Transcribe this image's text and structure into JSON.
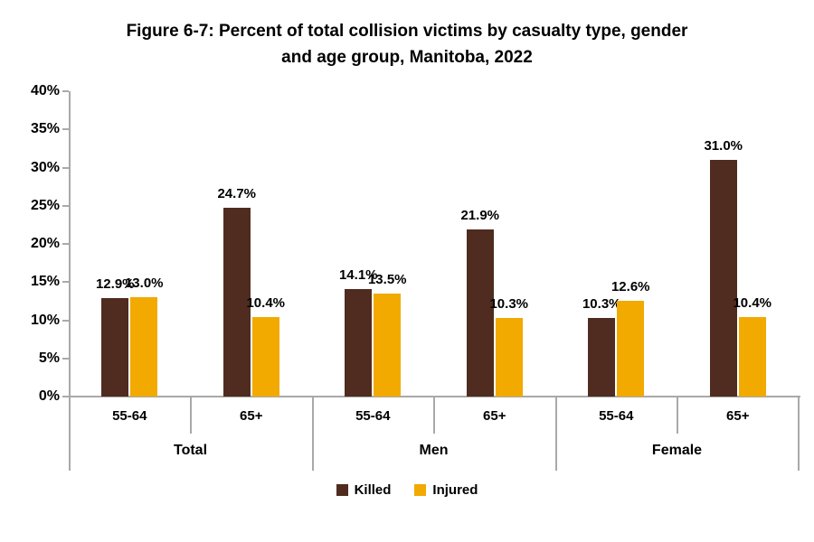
{
  "title_lines": [
    "Figure 6-7: Percent of total collision victims by casualty type, gender",
    "and age group, Manitoba, 2022"
  ],
  "colors": {
    "killed": "#4F2C1F",
    "injured": "#F2A900",
    "axis": "#A9A9A9",
    "text": "#000000"
  },
  "legend": [
    {
      "label": "Killed",
      "color_key": "killed"
    },
    {
      "label": "Injured",
      "color_key": "injured"
    }
  ],
  "chart_data": {
    "type": "bar",
    "title": "Figure 6-7: Percent of total collision victims by casualty type, gender and age group, Manitoba, 2022",
    "xlabel": "",
    "ylabel": "",
    "ylim": [
      0,
      40
    ],
    "y_tick_step": 5,
    "y_tick_labels": [
      "0%",
      "5%",
      "10%",
      "15%",
      "20%",
      "25%",
      "30%",
      "35%",
      "40%"
    ],
    "grid": false,
    "legend_position": "bottom",
    "group_labels": [
      "Total",
      "Men",
      "Female"
    ],
    "categories": [
      "55-64",
      "65+",
      "55-64",
      "65+",
      "55-64",
      "65+"
    ],
    "series": [
      {
        "name": "Killed",
        "color_key": "killed",
        "values": [
          12.9,
          24.7,
          14.1,
          21.9,
          10.3,
          31.0
        ]
      },
      {
        "name": "Injured",
        "color_key": "injured",
        "values": [
          13.0,
          10.4,
          13.5,
          10.3,
          12.6,
          10.4
        ]
      }
    ],
    "data_label_format": "0.0%"
  }
}
